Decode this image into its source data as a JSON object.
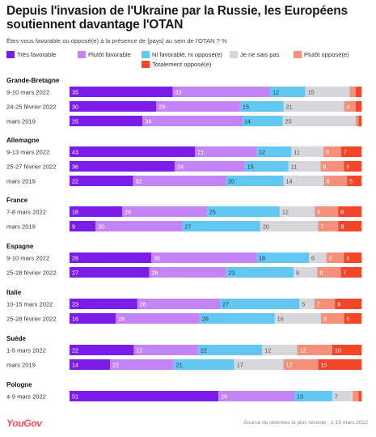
{
  "header": {
    "title": "Depuis l'invasion de l'Ukraine par la Russie, les Européens soutiennent davantage l'OTAN",
    "subtitle": "Êtes-vous favorable ou opposé(e) à la présence de [pays] au sein de l'OTAN ? %"
  },
  "footer": {
    "brand": "YouGov",
    "source": "Source de données la plus récente : 1-15 mars 2022"
  },
  "chart_data": {
    "type": "bar",
    "orientation": "horizontal",
    "stacked": true,
    "xlim": [
      0,
      100
    ],
    "legend_placement": "top",
    "categories_legend": [
      {
        "name": "Très favorable",
        "color": "#7b1ce8"
      },
      {
        "name": "Plutôt favorable",
        "color": "#c385f6"
      },
      {
        "name": "Ni favorable, ni opposé(e)",
        "color": "#62c8f2"
      },
      {
        "name": "Je ne sais pas",
        "color": "#d6d6db"
      },
      {
        "name": "Plutôt opposé(e)",
        "color": "#f5917b"
      },
      {
        "name": "Totalement opposé(e)",
        "color": "#f3452a"
      }
    ],
    "groups": [
      {
        "country": "Grande-Bretagne",
        "rows": [
          {
            "label": "9-10 mars 2022",
            "values": [
              35,
              33,
              12,
              15,
              2,
              2
            ]
          },
          {
            "label": "24-25 février 2022",
            "values": [
              30,
              29,
              15,
              21,
              4,
              2
            ]
          },
          {
            "label": "mars 2019",
            "values": [
              25,
              34,
              14,
              25,
              1,
              1
            ]
          }
        ]
      },
      {
        "country": "Allemagne",
        "rows": [
          {
            "label": "9-13 mars 2022",
            "values": [
              43,
              21,
              12,
              11,
              6,
              7
            ]
          },
          {
            "label": "25-27 février 2022",
            "values": [
              36,
              24,
              15,
              11,
              8,
              6
            ]
          },
          {
            "label": "mars 2019",
            "values": [
              22,
              32,
              20,
              14,
              8,
              5
            ]
          }
        ]
      },
      {
        "country": "France",
        "rows": [
          {
            "label": "7-8 mars 2022",
            "values": [
              18,
              29,
              25,
              12,
              8,
              8
            ]
          },
          {
            "label": "mars 2019",
            "values": [
              9,
              30,
              27,
              20,
              7,
              8
            ]
          }
        ]
      },
      {
        "country": "Espagne",
        "rows": [
          {
            "label": "9-10 mars 2022",
            "values": [
              28,
              36,
              18,
              6,
              6,
              6
            ]
          },
          {
            "label": "25-28 février 2022",
            "values": [
              27,
              26,
              23,
              8,
              8,
              7
            ]
          }
        ]
      },
      {
        "country": "Italie",
        "rows": [
          {
            "label": "10-15 mars 2022",
            "values": [
              23,
              28,
              27,
              5,
              7,
              9
            ]
          },
          {
            "label": "25-28 février 2022",
            "values": [
              16,
              29,
              26,
              16,
              8,
              6
            ]
          }
        ]
      },
      {
        "country": "Suède",
        "rows": [
          {
            "label": "1-5 mars 2022",
            "values": [
              22,
              22,
              22,
              12,
              12,
              10
            ]
          },
          {
            "label": "mars 2019",
            "values": [
              14,
              22,
              21,
              17,
              12,
              15
            ]
          }
        ]
      },
      {
        "country": "Pologne",
        "rows": [
          {
            "label": "4-9 mars 2022",
            "values": [
              51,
              26,
              13,
              7,
              2,
              1
            ]
          }
        ]
      }
    ]
  }
}
